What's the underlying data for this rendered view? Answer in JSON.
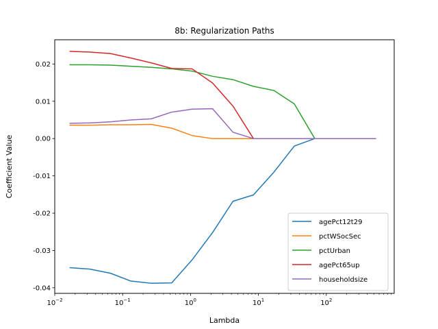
{
  "chart_data": {
    "type": "line",
    "title": "8b: Regularization Paths",
    "xlabel": "Lambda",
    "ylabel": "Coefficient Value",
    "xscale": "log",
    "xlim": [
      0.01,
      1000
    ],
    "ylim": [
      -0.0415,
      0.0265
    ],
    "x_ticks": [
      {
        "value": 0.01,
        "base": "10",
        "exp": "−2"
      },
      {
        "value": 0.1,
        "base": "10",
        "exp": "−1"
      },
      {
        "value": 1,
        "base": "10",
        "exp": "0"
      },
      {
        "value": 10,
        "base": "10",
        "exp": "1"
      },
      {
        "value": 100,
        "base": "10",
        "exp": "2"
      }
    ],
    "y_ticks": [
      {
        "value": 0.02,
        "label": "0.02"
      },
      {
        "value": 0.01,
        "label": "0.01"
      },
      {
        "value": 0.0,
        "label": "0.00"
      },
      {
        "value": -0.01,
        "label": "-0.01"
      },
      {
        "value": -0.02,
        "label": "-0.02"
      },
      {
        "value": -0.03,
        "label": "-0.03"
      },
      {
        "value": -0.04,
        "label": "-0.04"
      }
    ],
    "grid": false,
    "legend_position": "lower-right",
    "x": [
      0.0165,
      0.033,
      0.066,
      0.132,
      0.264,
      0.528,
      1.056,
      2.112,
      4.224,
      8.448,
      16.9,
      33.8,
      67.6,
      135.2,
      270.4,
      540.8
    ],
    "series": [
      {
        "name": "agePct12t29",
        "color": "#1f77b4",
        "values": [
          -0.0346,
          -0.035,
          -0.0361,
          -0.0382,
          -0.0388,
          -0.0387,
          -0.0325,
          -0.0252,
          -0.0168,
          -0.0151,
          -0.009,
          -0.002,
          0.0,
          0.0,
          0.0,
          0.0
        ]
      },
      {
        "name": "pctWSocSec",
        "color": "#ff7f0e",
        "values": [
          0.0036,
          0.0036,
          0.0037,
          0.0037,
          0.0038,
          0.0028,
          0.0008,
          0.0,
          0.0,
          0.0,
          0.0,
          0.0,
          0.0,
          0.0,
          0.0,
          0.0
        ]
      },
      {
        "name": "pctUrban",
        "color": "#2ca02c",
        "values": [
          0.0198,
          0.0198,
          0.0197,
          0.0194,
          0.0191,
          0.0187,
          0.0181,
          0.0167,
          0.0158,
          0.014,
          0.0129,
          0.0093,
          0.0,
          0.0,
          0.0,
          0.0
        ]
      },
      {
        "name": "agePct65up",
        "color": "#d62728",
        "values": [
          0.0234,
          0.0232,
          0.0228,
          0.0216,
          0.0203,
          0.0188,
          0.0187,
          0.0149,
          0.0087,
          0.0,
          0.0,
          0.0,
          0.0,
          0.0,
          0.0,
          0.0
        ]
      },
      {
        "name": "householdsize",
        "color": "#9467bd",
        "values": [
          0.0041,
          0.0042,
          0.0045,
          0.005,
          0.0053,
          0.0071,
          0.0079,
          0.008,
          0.0017,
          0.0,
          0.0,
          0.0,
          0.0,
          0.0,
          0.0,
          0.0
        ]
      }
    ]
  }
}
